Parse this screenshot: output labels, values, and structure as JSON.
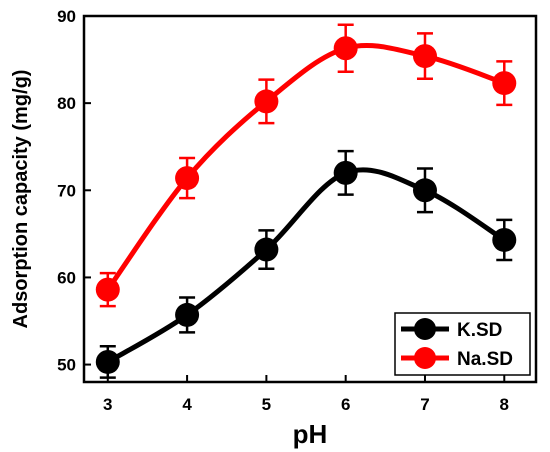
{
  "chart_data": {
    "type": "line",
    "xlabel": "pH",
    "ylabel": "Adsorption capacity (mg/g)",
    "x": [
      3,
      4,
      5,
      6,
      7,
      8
    ],
    "xlim": [
      2.7,
      8.4
    ],
    "ylim": [
      48,
      90
    ],
    "xticks": [
      3,
      4,
      5,
      6,
      7,
      8
    ],
    "yticks": [
      50,
      60,
      70,
      80,
      90
    ],
    "grid": false,
    "smooth": true,
    "legend_position": "bottom-right",
    "series": [
      {
        "name": "K.SD",
        "color": "#000000",
        "values": [
          50.3,
          55.7,
          63.2,
          72.0,
          70.0,
          64.3
        ],
        "errors": [
          1.8,
          2.0,
          2.2,
          2.5,
          2.5,
          2.3
        ]
      },
      {
        "name": "Na.SD",
        "color": "#ff0000",
        "values": [
          58.6,
          71.4,
          80.2,
          86.3,
          85.4,
          82.3
        ],
        "errors": [
          1.9,
          2.3,
          2.5,
          2.7,
          2.6,
          2.5
        ]
      }
    ]
  }
}
